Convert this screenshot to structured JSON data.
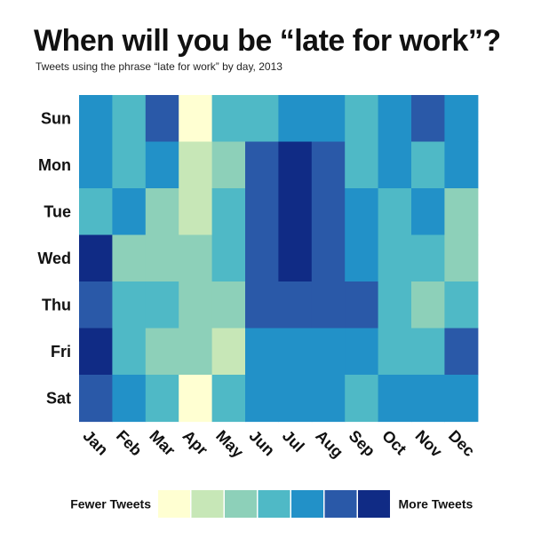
{
  "chart_data": {
    "type": "heatmap",
    "title": "When will you be “late for work”?",
    "subtitle": "Tweets using the phrase “late for work” by day, 2013",
    "rows": [
      "Sun",
      "Mon",
      "Tue",
      "Wed",
      "Thu",
      "Fri",
      "Sat"
    ],
    "columns": [
      "Jan",
      "Feb",
      "Mar",
      "Apr",
      "May",
      "Jun",
      "Jul",
      "Aug",
      "Sep",
      "Oct",
      "Nov",
      "Dec"
    ],
    "values": [
      [
        5,
        4,
        6,
        1,
        4,
        4,
        5,
        5,
        4,
        5,
        6,
        5
      ],
      [
        5,
        4,
        5,
        2,
        3,
        6,
        7,
        6,
        4,
        5,
        4,
        5
      ],
      [
        4,
        5,
        3,
        2,
        4,
        6,
        7,
        6,
        5,
        4,
        5,
        3
      ],
      [
        7,
        3,
        3,
        3,
        4,
        6,
        7,
        6,
        5,
        4,
        4,
        3
      ],
      [
        6,
        4,
        4,
        3,
        3,
        6,
        6,
        6,
        6,
        4,
        3,
        4
      ],
      [
        7,
        4,
        3,
        3,
        2,
        5,
        5,
        5,
        5,
        4,
        4,
        6
      ],
      [
        6,
        5,
        4,
        1,
        4,
        5,
        5,
        5,
        4,
        5,
        5,
        5
      ]
    ],
    "scale": {
      "min": 1,
      "max": 7,
      "colors": [
        "#ffffd2",
        "#c7e7b7",
        "#8dd0b9",
        "#4fb9c6",
        "#2291c8",
        "#2a59a8",
        "#102b85"
      ],
      "low_label": "Fewer Tweets",
      "high_label": "More Tweets"
    },
    "legend_placement": "bottom",
    "grid": false
  }
}
